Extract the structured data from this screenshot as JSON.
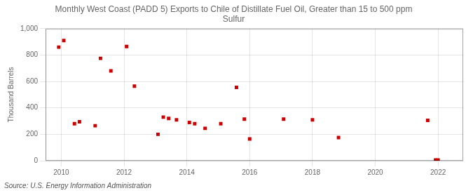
{
  "chart_data": {
    "type": "scatter",
    "title": "Monthly West Coast (PADD 5) Exports to Chile of Distillate Fuel Oil, Greater than 15 to 500 ppm\nSulfur",
    "y_label": "Thousand Barrels",
    "annotation": "Source: U.S. Energy Information Administration",
    "color": "#cc0000",
    "marker": "square",
    "xlim": [
      2009.5,
      2022.8
    ],
    "ylim": [
      0,
      1000
    ],
    "xticks": [
      2010,
      2012,
      2014,
      2016,
      2018,
      2020,
      2022
    ],
    "yticks": [
      0,
      200,
      400,
      600,
      800,
      {
        "value": 1000,
        "label": "1,000"
      }
    ],
    "grid": true,
    "x": [
      2009.92,
      2010.08,
      2010.42,
      2010.58,
      2011.08,
      2011.25,
      2011.58,
      2012.08,
      2012.33,
      2013.08,
      2013.25,
      2013.42,
      2013.67,
      2014.08,
      2014.25,
      2014.58,
      2015.08,
      2015.58,
      2015.83,
      2016.0,
      2017.08,
      2018.0,
      2018.83,
      2021.67,
      2021.92,
      2022.0
    ],
    "values": [
      860,
      910,
      280,
      295,
      265,
      775,
      680,
      865,
      565,
      200,
      330,
      320,
      310,
      290,
      280,
      245,
      280,
      555,
      315,
      165,
      315,
      310,
      175,
      305,
      5,
      5
    ]
  }
}
